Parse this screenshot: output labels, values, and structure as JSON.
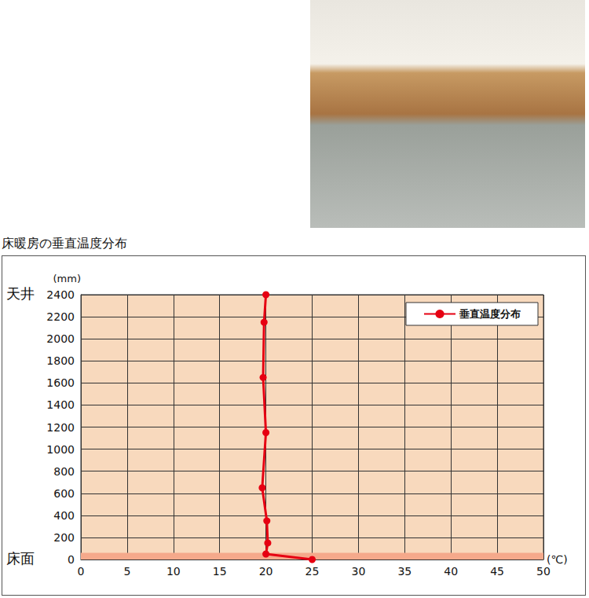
{
  "chart_data": {
    "type": "line",
    "title": "床暖房の垂直温度分布",
    "x_label": "(℃)",
    "y_label": "(mm)",
    "series": [
      {
        "name": "垂直温度分布",
        "color": "#e60012",
        "marker": "circle",
        "x": [
          25,
          20,
          20.2,
          20.1,
          19.6,
          20,
          19.7,
          19.8,
          20
        ],
        "values": [
          0,
          50,
          150,
          350,
          650,
          1150,
          1650,
          2150,
          2400
        ]
      }
    ],
    "xlim": [
      0,
      50
    ],
    "xticks": [
      0,
      5,
      10,
      15,
      20,
      25,
      30,
      35,
      40,
      45,
      50
    ],
    "ylim": [
      0,
      2400
    ],
    "yticks": [
      0,
      200,
      400,
      600,
      800,
      1000,
      1200,
      1400,
      1600,
      1800,
      2000,
      2200,
      2400
    ],
    "annotations": [
      {
        "text": "天井",
        "y": 2400
      },
      {
        "text": "床面",
        "y": 0
      }
    ],
    "shaded_band": {
      "ylim": [
        0,
        60
      ],
      "color": "#f5a98b"
    },
    "grid": true,
    "legend": "upper right"
  }
}
